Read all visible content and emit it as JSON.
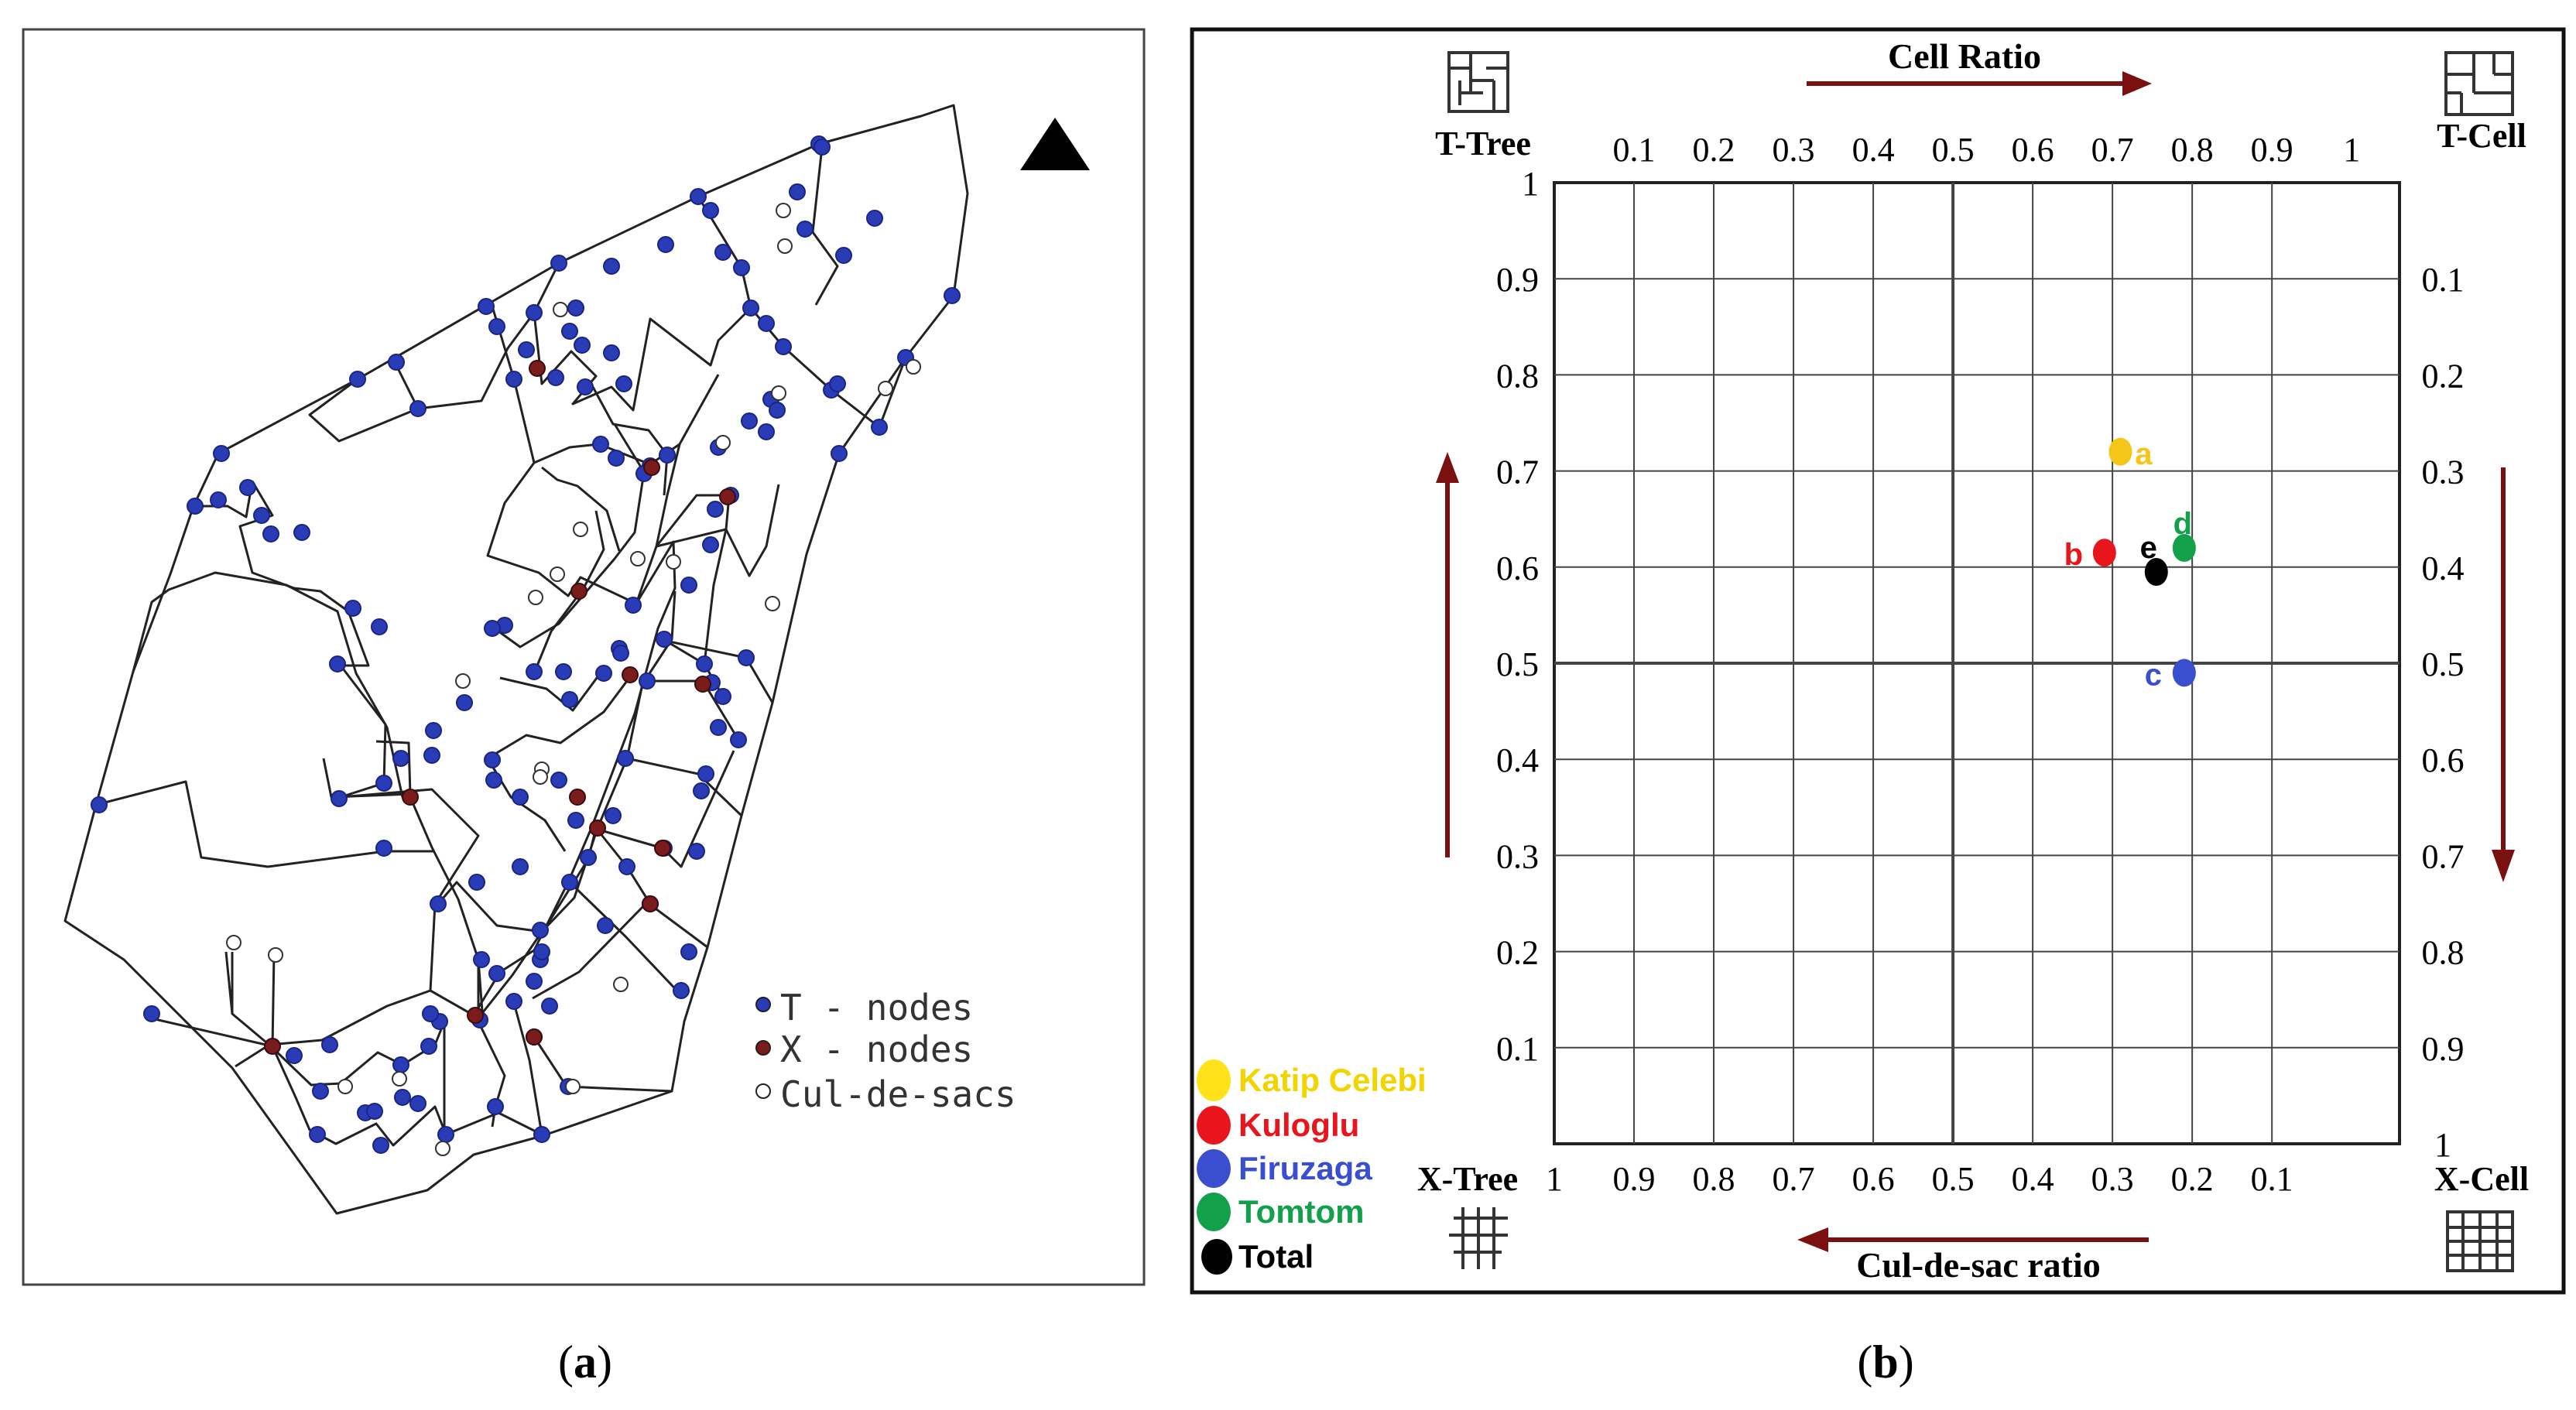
{
  "panel_a": {
    "caption_open": "(",
    "caption_letter": "a",
    "caption_close": ")",
    "legend": [
      {
        "label": "T - nodes",
        "color": "#2a3bb8"
      },
      {
        "label": "X - nodes",
        "color": "#7a1c1c"
      },
      {
        "label": "Cul-de-sacs",
        "color": "#ffffff"
      }
    ],
    "north_arrow": "north-arrow-icon"
  },
  "panel_b": {
    "caption_open": "(",
    "caption_letter": "b",
    "caption_close": ")",
    "top_title": "Cell Ratio",
    "bottom_title": "Cul-de-sac ratio",
    "corners": {
      "top_left": "T-Tree",
      "top_right": "T-Cell",
      "bottom_left": "X-Tree",
      "bottom_right": "X-Cell"
    },
    "top_ticks": [
      "0.1",
      "0.2",
      "0.3",
      "0.4",
      "0.5",
      "0.6",
      "0.7",
      "0.8",
      "0.9",
      "1"
    ],
    "bottom_ticks": [
      "1",
      "0.9",
      "0.8",
      "0.7",
      "0.6",
      "0.5",
      "0.4",
      "0.3",
      "0.2",
      "0.1"
    ],
    "left_ticks": [
      "1",
      "0.9",
      "0.8",
      "0.7",
      "0.6",
      "0.5",
      "0.4",
      "0.3",
      "0.2",
      "0.1"
    ],
    "right_ticks": [
      "0.1",
      "0.2",
      "0.3",
      "0.4",
      "0.5",
      "0.6",
      "0.7",
      "0.8",
      "0.9",
      "1"
    ],
    "arrow_color": "#7a1010",
    "legend": [
      {
        "label": "Katip Celebi",
        "color": "#ffe21a",
        "text_color": "#f2d500"
      },
      {
        "label": "Kuloglu",
        "color": "#e8161c",
        "text_color": "#e8161c"
      },
      {
        "label": "Firuzaga",
        "color": "#3a4fd0",
        "text_color": "#3a4fd0"
      },
      {
        "label": "Tomtom",
        "color": "#13a04a",
        "text_color": "#13a04a"
      },
      {
        "label": "Total",
        "color": "#000000",
        "text_color": "#000000"
      }
    ],
    "points": [
      {
        "id": "a",
        "cell_ratio": 0.71,
        "vertical": 0.72,
        "color": "#f5c518"
      },
      {
        "id": "b",
        "cell_ratio": 0.69,
        "vertical": 0.615,
        "color": "#e8161c"
      },
      {
        "id": "c",
        "cell_ratio": 0.79,
        "vertical": 0.49,
        "color": "#3a4fd0"
      },
      {
        "id": "d",
        "cell_ratio": 0.79,
        "vertical": 0.62,
        "color": "#13a04a"
      },
      {
        "id": "e",
        "cell_ratio": 0.755,
        "vertical": 0.595,
        "color": "#000000"
      }
    ]
  }
}
